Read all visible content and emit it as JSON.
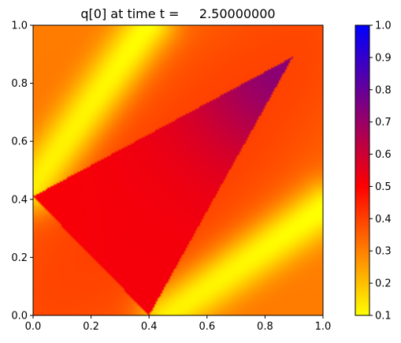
{
  "chart_data": {
    "type": "heatmap",
    "title": "q[0] at time t =     2.50000000",
    "xlabel": "",
    "ylabel": "",
    "xlim": [
      0.0,
      1.0
    ],
    "ylim": [
      0.0,
      1.0
    ],
    "x_ticks": [
      "0.0",
      "0.2",
      "0.4",
      "0.6",
      "0.8",
      "1.0"
    ],
    "y_ticks": [
      "0.0",
      "0.2",
      "0.4",
      "0.6",
      "0.8",
      "1.0"
    ],
    "grid": false,
    "colorbar": {
      "vmin": 0.1,
      "vmax": 1.0,
      "ticks": [
        "0.1",
        "0.2",
        "0.3",
        "0.4",
        "0.5",
        "0.6",
        "0.7",
        "0.8",
        "0.9",
        "1.0"
      ],
      "colors": [
        {
          "value": 0.1,
          "color": "#ffff00"
        },
        {
          "value": 0.5,
          "color": "#ff0000"
        },
        {
          "value": 1.0,
          "color": "#0000ff"
        }
      ]
    },
    "field_description": [
      {
        "region": "background",
        "value_range": [
          0.3,
          0.4
        ]
      },
      {
        "region": "two diagonal bands (upper-left and lower-right)",
        "value_range": [
          0.1,
          0.22
        ]
      },
      {
        "region": "central tilted triangular wedge",
        "value_range": [
          0.5,
          0.72
        ]
      },
      {
        "region": "wedge tip near (0.88, 0.88)",
        "value": 0.72
      }
    ]
  }
}
